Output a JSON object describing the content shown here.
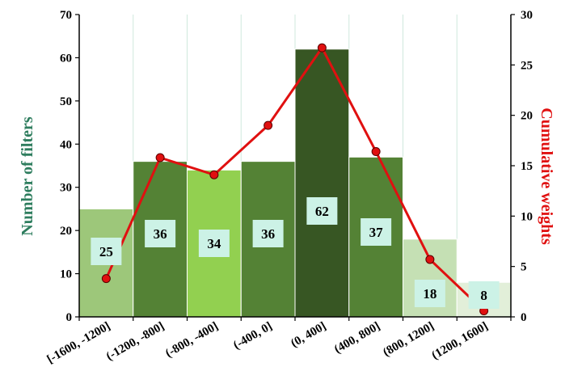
{
  "chart_data": {
    "type": "bar",
    "categories": [
      "[-1600, -1200]",
      "(-1200, -800]",
      "(-800, -400]",
      "(-400, 0]",
      "(0, 400]",
      "(400, 800]",
      "(800, 1200]",
      "(1200, 1600]"
    ],
    "series": [
      {
        "type": "bar",
        "axis": "left",
        "values": [
          25,
          36,
          34,
          36,
          62,
          37,
          18,
          8
        ],
        "colors": [
          "#9dc77a",
          "#548235",
          "#92d050",
          "#548235",
          "#375623",
          "#548235",
          "#c5e0b4",
          "#e2efd9"
        ]
      },
      {
        "type": "line",
        "axis": "right",
        "color": "#e01010",
        "values": [
          3.8,
          15.8,
          14.1,
          19.0,
          26.7,
          16.4,
          5.7,
          0.6
        ]
      }
    ],
    "ylabel": "Number of filters",
    "y2label": "Cumulative weights",
    "ylim": [
      0,
      70
    ],
    "y2lim": [
      0,
      30
    ],
    "yticks": [
      0,
      10,
      20,
      30,
      40,
      50,
      60,
      70
    ],
    "y2ticks": [
      0,
      5,
      10,
      15,
      20,
      25,
      30
    ],
    "label_box_color": "#ccf2e6",
    "grid_color": "#cfe8dd"
  }
}
